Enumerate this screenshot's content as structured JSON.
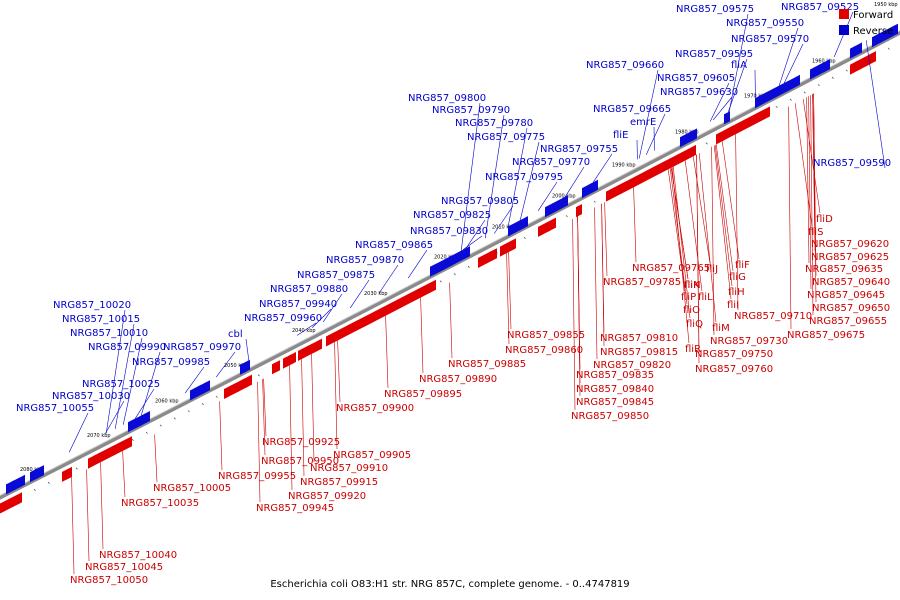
{
  "caption": "Escherichia coli O83:H1 str. NRG 857C, complete genome. - 0..4747819",
  "legend": [
    {
      "label": "Forward",
      "color": "#e00000"
    },
    {
      "label": "Reverse",
      "color": "#0000cc"
    }
  ],
  "corner_tick": "1950 kbp",
  "ticks": [
    "1960 kbp",
    "1970 kbp",
    "1980 kbp",
    "1990 kbp",
    "2000 kbp",
    "2010 kbp",
    "2020 kbp",
    "2030 kbp",
    "2040 kbp",
    "2050 kbp",
    "2060 kbp",
    "2070 kbp",
    "2080 kbp"
  ],
  "reverse_labels": [
    "NRG857_09575",
    "NRG857_09525",
    "NRG857_09550",
    "NRG857_09570",
    "NRG857_09595",
    "fliA",
    "NRG857_09660",
    "NRG857_09605",
    "NRG857_09630",
    "NRG857_09665",
    "emrE",
    "fliE",
    "NRG857_09800",
    "NRG857_09790",
    "NRG857_09780",
    "NRG857_09775",
    "NRG857_09755",
    "NRG857_09770",
    "NRG857_09795",
    "NRG857_09805",
    "NRG857_09825",
    "NRG857_09830",
    "NRG857_09865",
    "NRG857_09870",
    "NRG857_09875",
    "NRG857_09880",
    "NRG857_09940",
    "NRG857_09960",
    "NRG857_10020",
    "NRG857_10015",
    "NRG857_10010",
    "cbl",
    "NRG857_09990",
    "NRG857_09970",
    "NRG857_09985",
    "NRG857_10025",
    "NRG857_10030",
    "NRG857_10055",
    "NRG857_09590"
  ],
  "forward_labels": [
    "fliD",
    "fliS",
    "NRG857_09620",
    "NRG857_09625",
    "NRG857_09635",
    "NRG857_09640",
    "NRG857_09645",
    "NRG857_09650",
    "NRG857_09655",
    "NRG857_09675",
    "fliF",
    "fliG",
    "fliH",
    "fliI",
    "fliJ",
    "fliK",
    "fliL",
    "fliM",
    "fliN",
    "fliO",
    "fliP",
    "fliQ",
    "fliR",
    "NRG857_09710",
    "NRG857_09730",
    "NRG857_09750",
    "NRG857_09760",
    "NRG857_09765",
    "NRG857_09785",
    "NRG857_09810",
    "NRG857_09815",
    "NRG857_09820",
    "NRG857_09835",
    "NRG857_09840",
    "NRG857_09845",
    "NRG857_09850",
    "NRG857_09855",
    "NRG857_09860",
    "NRG857_09885",
    "NRG857_09890",
    "NRG857_09895",
    "NRG857_09900",
    "NRG857_09905",
    "NRG857_09910",
    "NRG857_09915",
    "NRG857_09920",
    "NRG857_09925",
    "NRG857_09945",
    "NRG857_09950",
    "NRG857_09955",
    "NRG857_10005",
    "NRG857_10035",
    "NRG857_10040",
    "NRG857_10045",
    "NRG857_10050"
  ]
}
